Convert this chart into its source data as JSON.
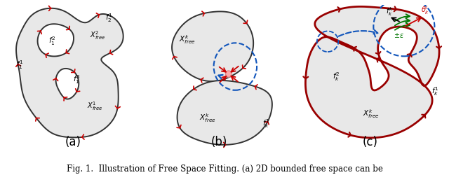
{
  "fig_width": 6.4,
  "fig_height": 2.51,
  "dpi": 100,
  "background_color": "#ffffff",
  "caption": "Fig. 1.  Illustration of Free Space Fitting. (a) 2D bounded free space can be",
  "caption_fontsize": 8.5,
  "shape_fill": "#e8e8e8",
  "shape_edge": "#333333",
  "red_color": "#cc0000",
  "dark_red": "#990000",
  "blue_dashed": "#1155bb",
  "green_color": "#007700",
  "pink_fill": "#ffbbbb",
  "panel_label_fontsize": 12,
  "label_fontsize": 7.5
}
